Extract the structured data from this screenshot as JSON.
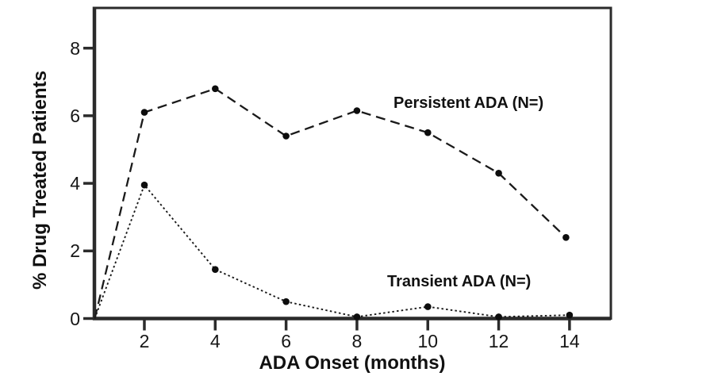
{
  "chart_data": {
    "type": "line",
    "title": "",
    "xlabel": "ADA Onset (months)",
    "ylabel": "% Drug Treated Patients",
    "xlim": [
      0.6,
      15.2
    ],
    "ylim": [
      0,
      9.2
    ],
    "xticks": [
      2,
      4,
      6,
      8,
      10,
      12,
      14
    ],
    "yticks": [
      0,
      2,
      4,
      6,
      8
    ],
    "grid": false,
    "legend_position": "inline-annotations",
    "axis_color": "#2b2b2b",
    "line_color": "#1a1a1a",
    "marker_color": "#0d0d0d",
    "series": [
      {
        "name": "Persistent ADA (N=)",
        "line_style": "dashed",
        "marker": "filled-circle",
        "start": [
          0.6,
          0
        ],
        "points": [
          [
            2,
            6.1
          ],
          [
            4,
            6.8
          ],
          [
            6,
            5.4
          ],
          [
            8,
            6.15
          ],
          [
            10,
            5.5
          ],
          [
            12,
            4.3
          ],
          [
            13.9,
            2.4
          ]
        ]
      },
      {
        "name": "Transient ADA (N=)",
        "line_style": "dotted",
        "marker": "filled-circle",
        "start": [
          0.6,
          0
        ],
        "points": [
          [
            2,
            3.95
          ],
          [
            4,
            1.45
          ],
          [
            6,
            0.5
          ],
          [
            8,
            0.05
          ],
          [
            10,
            0.35
          ],
          [
            12,
            0.05
          ],
          [
            14,
            0.1
          ]
        ]
      }
    ]
  }
}
